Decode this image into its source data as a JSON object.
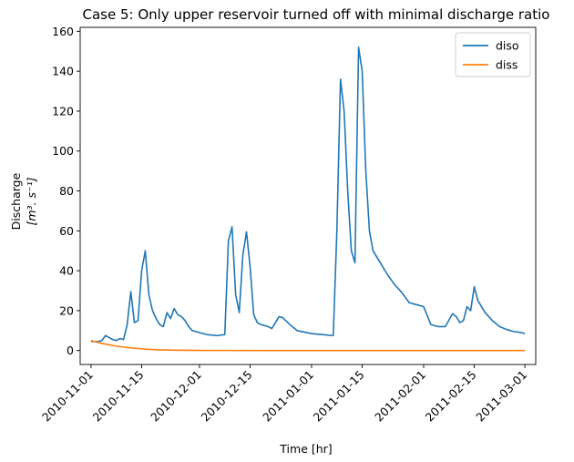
{
  "chart_data": {
    "type": "line",
    "title": "Case 5: Only upper reservoir turned off with minimal discharge ratio",
    "xlabel": "Time [hr]",
    "ylabel": "Discharge",
    "ylabel_unit": "[m³. s⁻¹]",
    "xlim": [
      "2010-10-29",
      "2011-03-04"
    ],
    "ylim": [
      -7,
      162
    ],
    "yticks": [
      0,
      20,
      40,
      60,
      80,
      100,
      120,
      140,
      160
    ],
    "xticks": [
      "2010-11-01",
      "2010-11-15",
      "2010-12-01",
      "2010-12-15",
      "2011-01-01",
      "2011-01-15",
      "2011-02-01",
      "2011-02-15",
      "2011-03-01"
    ],
    "legend_position": "top-right",
    "series": [
      {
        "name": "diso",
        "color": "#1f77b4",
        "points": [
          [
            "2010-11-01",
            4.5
          ],
          [
            "2010-11-03",
            4.5
          ],
          [
            "2010-11-04",
            5
          ],
          [
            "2010-11-05",
            7.5
          ],
          [
            "2010-11-06",
            6.5
          ],
          [
            "2010-11-07",
            5.5
          ],
          [
            "2010-11-08",
            5
          ],
          [
            "2010-11-09",
            6
          ],
          [
            "2010-11-10",
            5.5
          ],
          [
            "2010-11-11",
            13
          ],
          [
            "2010-11-12",
            29.5
          ],
          [
            "2010-11-13",
            14
          ],
          [
            "2010-11-14",
            15
          ],
          [
            "2010-11-15",
            40
          ],
          [
            "2010-11-16",
            50
          ],
          [
            "2010-11-17",
            28
          ],
          [
            "2010-11-18",
            20
          ],
          [
            "2010-11-19",
            16
          ],
          [
            "2010-11-20",
            13
          ],
          [
            "2010-11-21",
            12
          ],
          [
            "2010-11-22",
            19
          ],
          [
            "2010-11-23",
            16
          ],
          [
            "2010-11-24",
            21
          ],
          [
            "2010-11-25",
            18
          ],
          [
            "2010-11-26",
            17
          ],
          [
            "2010-11-27",
            15
          ],
          [
            "2010-11-28",
            12
          ],
          [
            "2010-11-29",
            10
          ],
          [
            "2010-12-01",
            9
          ],
          [
            "2010-12-03",
            8
          ],
          [
            "2010-12-06",
            7.5
          ],
          [
            "2010-12-08",
            8
          ],
          [
            "2010-12-09",
            55
          ],
          [
            "2010-12-10",
            62
          ],
          [
            "2010-12-11",
            28
          ],
          [
            "2010-12-12",
            19
          ],
          [
            "2010-12-13",
            48
          ],
          [
            "2010-12-14",
            59.5
          ],
          [
            "2010-12-15",
            42
          ],
          [
            "2010-12-16",
            18
          ],
          [
            "2010-12-17",
            14
          ],
          [
            "2010-12-18",
            13
          ],
          [
            "2010-12-19",
            12.5
          ],
          [
            "2010-12-20",
            12
          ],
          [
            "2010-12-21",
            11
          ],
          [
            "2010-12-23",
            17
          ],
          [
            "2010-12-24",
            16.5
          ],
          [
            "2010-12-26",
            13
          ],
          [
            "2010-12-28",
            10
          ],
          [
            "2011-01-01",
            8.5
          ],
          [
            "2011-01-04",
            8
          ],
          [
            "2011-01-07",
            7.5
          ],
          [
            "2011-01-08",
            60
          ],
          [
            "2011-01-09",
            136
          ],
          [
            "2011-01-10",
            120
          ],
          [
            "2011-01-11",
            80
          ],
          [
            "2011-01-12",
            50
          ],
          [
            "2011-01-13",
            44
          ],
          [
            "2011-01-14",
            152
          ],
          [
            "2011-01-15",
            140
          ],
          [
            "2011-01-16",
            90
          ],
          [
            "2011-01-17",
            60
          ],
          [
            "2011-01-18",
            50
          ],
          [
            "2011-01-20",
            44
          ],
          [
            "2011-01-22",
            38
          ],
          [
            "2011-01-24",
            33
          ],
          [
            "2011-01-26",
            29
          ],
          [
            "2011-01-28",
            24
          ],
          [
            "2011-01-30",
            23
          ],
          [
            "2011-02-01",
            22
          ],
          [
            "2011-02-03",
            13
          ],
          [
            "2011-02-05",
            12
          ],
          [
            "2011-02-07",
            12
          ],
          [
            "2011-02-09",
            18.5
          ],
          [
            "2011-02-10",
            17
          ],
          [
            "2011-02-11",
            14
          ],
          [
            "2011-02-12",
            15
          ],
          [
            "2011-02-13",
            22
          ],
          [
            "2011-02-14",
            20
          ],
          [
            "2011-02-15",
            32
          ],
          [
            "2011-02-16",
            25
          ],
          [
            "2011-02-18",
            19
          ],
          [
            "2011-02-20",
            15
          ],
          [
            "2011-02-22",
            12
          ],
          [
            "2011-02-24",
            10.5
          ],
          [
            "2011-02-26",
            9.5
          ],
          [
            "2011-02-28",
            9
          ],
          [
            "2011-03-01",
            8.5
          ]
        ]
      },
      {
        "name": "diss",
        "color": "#ff7f0e",
        "points": [
          [
            "2010-11-01",
            5
          ],
          [
            "2010-11-04",
            3.6
          ],
          [
            "2010-11-08",
            2.2
          ],
          [
            "2010-11-12",
            1.3
          ],
          [
            "2010-11-16",
            0.7
          ],
          [
            "2010-11-20",
            0.35
          ],
          [
            "2010-11-25",
            0.15
          ],
          [
            "2010-12-01",
            0.05
          ],
          [
            "2010-12-15",
            0
          ],
          [
            "2011-01-01",
            0
          ],
          [
            "2011-02-01",
            0
          ],
          [
            "2011-03-01",
            0
          ]
        ]
      }
    ]
  }
}
